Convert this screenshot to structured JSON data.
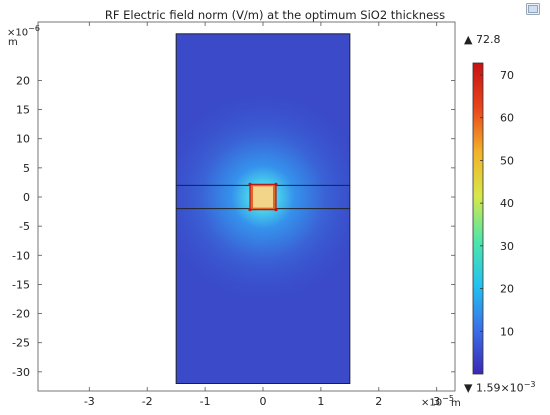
{
  "chart_data": {
    "type": "heatmap",
    "title": "RF Electric field norm (V/m) at the optimum SiO2 thickness",
    "x_axis": {
      "unit": "m",
      "multiplier_base": "×10",
      "multiplier_exp": "−5",
      "ticks": [
        -3,
        -2,
        -1,
        0,
        1,
        2,
        3
      ],
      "tick_labels": [
        "-3",
        "-2",
        "-1",
        "0",
        "1",
        "2",
        "3"
      ],
      "range": [
        -3.95,
        3.3
      ]
    },
    "y_axis": {
      "unit": "m",
      "multiplier_base": "×10",
      "multiplier_exp": "−6",
      "ticks": [
        20,
        15,
        10,
        5,
        0,
        -5,
        -10,
        -15,
        -20,
        -25,
        -30
      ],
      "tick_labels": [
        "20",
        "15",
        "10",
        "5",
        "0",
        "-5",
        "-10",
        "-15",
        "-20",
        "-25",
        "-30"
      ],
      "range": [
        -35.5,
        26.2
      ]
    },
    "domain": {
      "x": [
        -1.5,
        1.5
      ],
      "y": [
        -32,
        28
      ]
    },
    "layer": {
      "y": [
        -2,
        2
      ]
    },
    "conductor": {
      "x": [
        -0.19,
        0.19
      ],
      "y": [
        -2,
        2
      ]
    },
    "colorbar": {
      "ticks": [
        10,
        20,
        30,
        40,
        50,
        60,
        70
      ],
      "tick_labels": [
        "10",
        "20",
        "30",
        "40",
        "50",
        "60",
        "70"
      ],
      "min": 0.00159,
      "max": 72.8,
      "max_label": "72.8",
      "min_base": "1.59×10",
      "min_exp": "−3",
      "colormap": [
        "#3a28b4",
        "#3c6fe8",
        "#22c3f0",
        "#4fe6a8",
        "#d6e84a",
        "#f3b22a",
        "#e8441c",
        "#c71212"
      ]
    }
  }
}
